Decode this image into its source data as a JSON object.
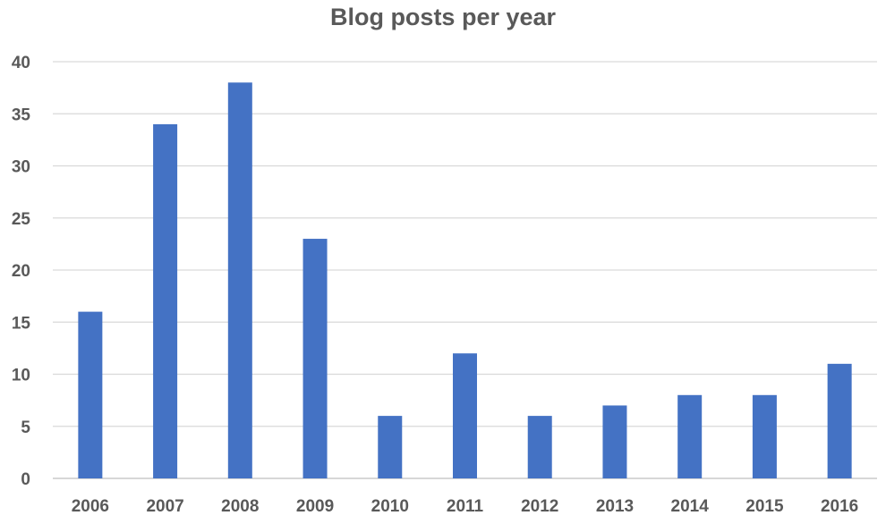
{
  "chart_data": {
    "type": "bar",
    "title": "Blog posts per year",
    "xlabel": "",
    "ylabel": "",
    "categories": [
      "2006",
      "2007",
      "2008",
      "2009",
      "2010",
      "2011",
      "2012",
      "2013",
      "2014",
      "2015",
      "2016"
    ],
    "values": [
      16,
      34,
      38,
      23,
      6,
      12,
      6,
      7,
      8,
      8,
      11
    ],
    "ylim": [
      0,
      40
    ],
    "yticks": [
      0,
      5,
      10,
      15,
      20,
      25,
      30,
      35,
      40
    ],
    "grid": true,
    "legend": "none",
    "colors": {
      "bar": "#4472C4",
      "grid": "#D9D9D9",
      "text": "#595959"
    }
  }
}
